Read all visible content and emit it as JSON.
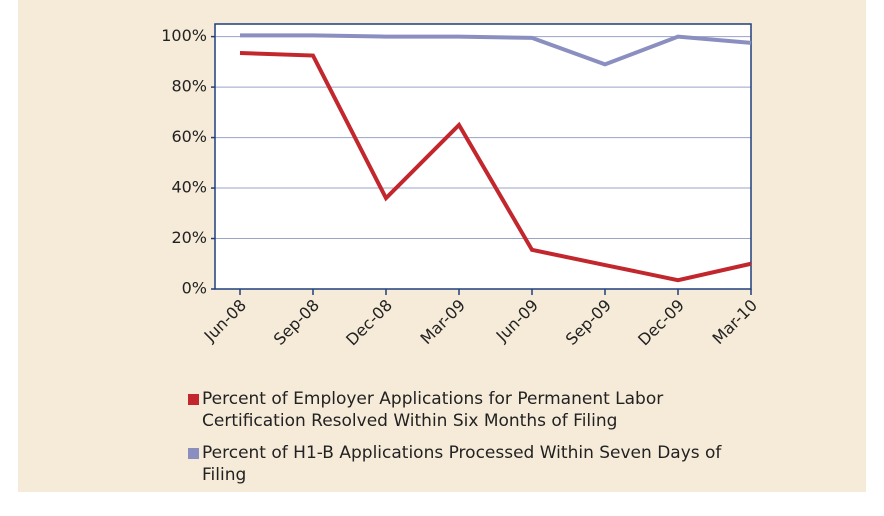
{
  "chart_data": {
    "type": "line",
    "categories": [
      "Jun-08",
      "Sep-08",
      "Dec-08",
      "Mar-09",
      "Jun-09",
      "Sep-09",
      "Dec-09",
      "Mar-10"
    ],
    "series": [
      {
        "name": "Percent of Employer Applications for Permanent Labor Certification Resolved Within Six Months of Filing",
        "color": "#c1272d",
        "values": [
          93.5,
          92.5,
          36,
          65,
          15.5,
          9.5,
          3.5,
          10
        ]
      },
      {
        "name": "Percent of H1-B Applications Processed Within Seven Days of Filing",
        "color": "#8a8fc0",
        "values": [
          100.5,
          100.5,
          100,
          100,
          99.5,
          89,
          100,
          97.5
        ]
      }
    ],
    "ylim": [
      0,
      105
    ],
    "yticks": [
      {
        "value": 0,
        "label": "0%"
      },
      {
        "value": 20,
        "label": "20%"
      },
      {
        "value": 40,
        "label": "40%"
      },
      {
        "value": 60,
        "label": "60%"
      },
      {
        "value": 80,
        "label": "80%"
      },
      {
        "value": 100,
        "label": "100%"
      }
    ],
    "grid": true
  }
}
